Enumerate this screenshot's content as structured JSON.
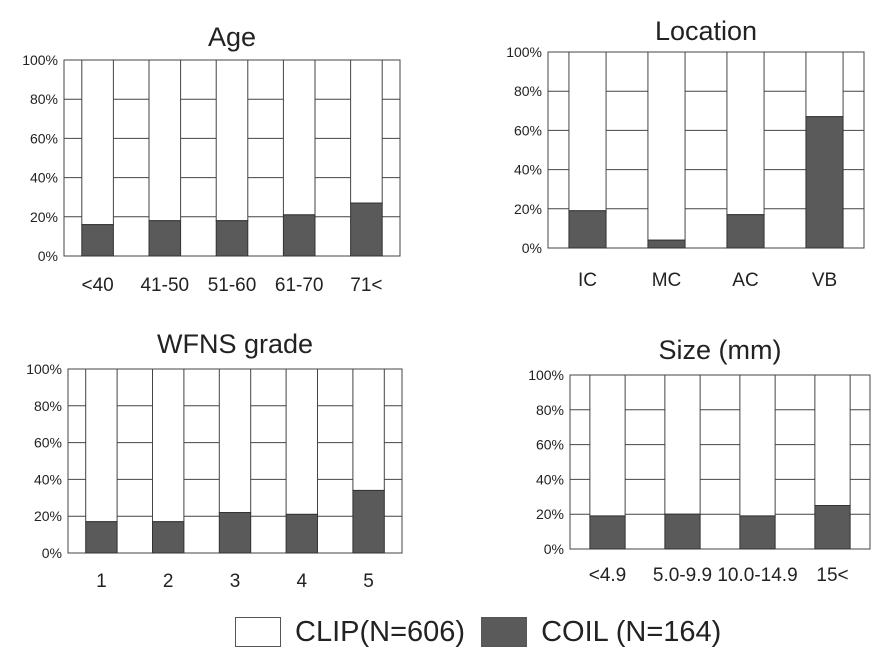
{
  "legend": {
    "clip_label": "CLIP(N=606)",
    "coil_label": "COIL (N=164)"
  },
  "colors": {
    "clip": "#ffffff",
    "coil": "#5a5a5a",
    "grid": "#444444"
  },
  "chart_data": [
    {
      "type": "bar",
      "title": "Age",
      "categories": [
        "<40",
        "41-50",
        "51-60",
        "61-70",
        "71<"
      ],
      "series": [
        {
          "name": "COIL (N=164)",
          "values": [
            16,
            18,
            18,
            21,
            27
          ]
        },
        {
          "name": "CLIP(N=606)",
          "values": [
            84,
            82,
            82,
            79,
            73
          ]
        }
      ],
      "yticks": [
        "0%",
        "20%",
        "40%",
        "60%",
        "80%",
        "100%"
      ],
      "ylim": [
        0,
        100
      ],
      "stacked": true,
      "grid": true
    },
    {
      "type": "bar",
      "title": "Location",
      "categories": [
        "IC",
        "MC",
        "AC",
        "VB"
      ],
      "series": [
        {
          "name": "COIL (N=164)",
          "values": [
            19,
            4,
            17,
            67
          ]
        },
        {
          "name": "CLIP(N=606)",
          "values": [
            81,
            96,
            83,
            33
          ]
        }
      ],
      "yticks": [
        "0%",
        "20%",
        "40%",
        "60%",
        "80%",
        "100%"
      ],
      "ylim": [
        0,
        100
      ],
      "stacked": true,
      "grid": true
    },
    {
      "type": "bar",
      "title": "WFNS grade",
      "categories": [
        "1",
        "2",
        "3",
        "4",
        "5"
      ],
      "series": [
        {
          "name": "COIL (N=164)",
          "values": [
            17,
            17,
            22,
            21,
            34
          ]
        },
        {
          "name": "CLIP(N=606)",
          "values": [
            83,
            83,
            78,
            79,
            66
          ]
        }
      ],
      "yticks": [
        "0%",
        "20%",
        "40%",
        "60%",
        "80%",
        "100%"
      ],
      "ylim": [
        0,
        100
      ],
      "stacked": true,
      "grid": true
    },
    {
      "type": "bar",
      "title": "Size (mm)",
      "categories": [
        "<4.9",
        "5.0-9.9",
        "10.0-14.9",
        "15<"
      ],
      "series": [
        {
          "name": "COIL (N=164)",
          "values": [
            19,
            20,
            19,
            25
          ]
        },
        {
          "name": "CLIP(N=606)",
          "values": [
            81,
            80,
            81,
            75
          ]
        }
      ],
      "yticks": [
        "0%",
        "20%",
        "40%",
        "60%",
        "80%",
        "100%"
      ],
      "ylim": [
        0,
        100
      ],
      "stacked": true,
      "grid": true
    }
  ]
}
